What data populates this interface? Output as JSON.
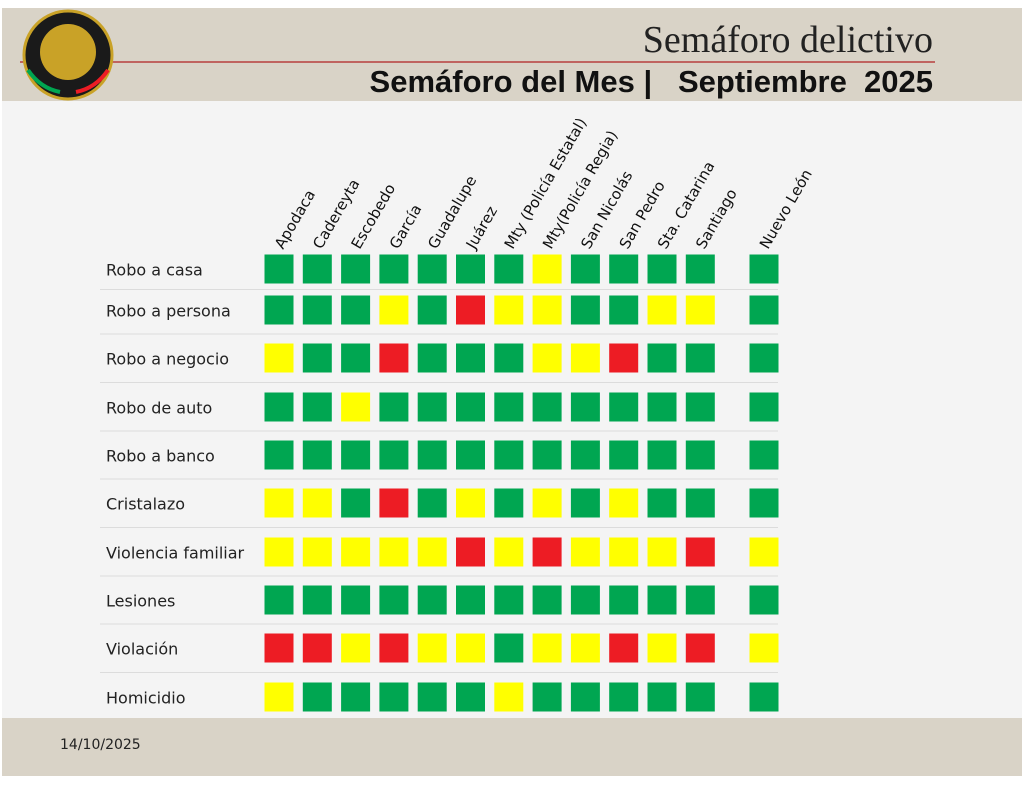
{
  "header": {
    "title": "Semáforo delictivo",
    "subtitle": "Semáforo del Mes |   Septiembre  2025"
  },
  "table": {
    "columns": [
      "Apodaca",
      "Cadereyta",
      "Escobedo",
      "García",
      "Guadalupe",
      "Juárez",
      "Mty (Policía Estatal)",
      "Mty(Policía Regia)",
      "San Nicolás",
      "San Pedro",
      "Sta. Catarina",
      "Santiago",
      "Nuevo León"
    ],
    "rows": [
      {
        "label": "Robo a casa",
        "cells": [
          "#00a651",
          "#00a651",
          "#00a651",
          "#00a651",
          "#00a651",
          "#00a651",
          "#00a651",
          "#ffff00",
          "#00a651",
          "#00a651",
          "#00a651",
          "#00a651",
          "#00a651"
        ]
      },
      {
        "label": "Robo a persona",
        "cells": [
          "#00a651",
          "#00a651",
          "#00a651",
          "#ffff00",
          "#00a651",
          "#ed1c24",
          "#ffff00",
          "#ffff00",
          "#00a651",
          "#00a651",
          "#ffff00",
          "#ffff00",
          "#00a651"
        ]
      },
      {
        "label": "Robo a negocio",
        "cells": [
          "#ffff00",
          "#00a651",
          "#00a651",
          "#ed1c24",
          "#00a651",
          "#00a651",
          "#00a651",
          "#ffff00",
          "#ffff00",
          "#ed1c24",
          "#00a651",
          "#00a651",
          "#00a651"
        ]
      },
      {
        "label": "Robo de auto",
        "cells": [
          "#00a651",
          "#00a651",
          "#ffff00",
          "#00a651",
          "#00a651",
          "#00a651",
          "#00a651",
          "#00a651",
          "#00a651",
          "#00a651",
          "#00a651",
          "#00a651",
          "#00a651"
        ]
      },
      {
        "label": "Robo a banco",
        "cells": [
          "#00a651",
          "#00a651",
          "#00a651",
          "#00a651",
          "#00a651",
          "#00a651",
          "#00a651",
          "#00a651",
          "#00a651",
          "#00a651",
          "#00a651",
          "#00a651",
          "#00a651"
        ]
      },
      {
        "label": "Cristalazo",
        "cells": [
          "#ffff00",
          "#ffff00",
          "#00a651",
          "#ed1c24",
          "#00a651",
          "#ffff00",
          "#00a651",
          "#ffff00",
          "#00a651",
          "#ffff00",
          "#00a651",
          "#00a651",
          "#00a651"
        ]
      },
      {
        "label": "Violencia familiar",
        "cells": [
          "#ffff00",
          "#ffff00",
          "#ffff00",
          "#ffff00",
          "#ffff00",
          "#ed1c24",
          "#ffff00",
          "#ed1c24",
          "#ffff00",
          "#ffff00",
          "#ffff00",
          "#ed1c24",
          "#ffff00"
        ]
      },
      {
        "label": "Lesiones",
        "cells": [
          "#00a651",
          "#00a651",
          "#00a651",
          "#00a651",
          "#00a651",
          "#00a651",
          "#00a651",
          "#00a651",
          "#00a651",
          "#00a651",
          "#00a651",
          "#00a651",
          "#00a651"
        ]
      },
      {
        "label": "Violación",
        "cells": [
          "#ed1c24",
          "#ed1c24",
          "#ffff00",
          "#ed1c24",
          "#ffff00",
          "#ffff00",
          "#00a651",
          "#ffff00",
          "#ffff00",
          "#ed1c24",
          "#ffff00",
          "#ed1c24",
          "#ffff00"
        ]
      },
      {
        "label": "Homicidio",
        "cells": [
          "#ffff00",
          "#00a651",
          "#00a651",
          "#00a651",
          "#00a651",
          "#00a651",
          "#ffff00",
          "#00a651",
          "#00a651",
          "#00a651",
          "#00a651",
          "#00a651",
          "#00a651"
        ]
      }
    ]
  },
  "footer": {
    "date": "14/10/2025"
  }
}
